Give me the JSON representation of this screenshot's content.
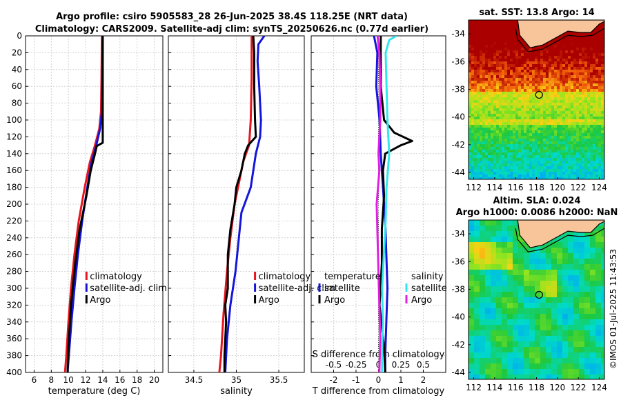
{
  "title_line1": "Argo profile: csiro 5905583_28 26-Jun-2025 38.4S 118.25E (NRT data)",
  "title_line2": "Climatology: CARS2009. Satellite-adj clim: synTS_20250626.nc (0.77d earlier)",
  "map_sst_title": "sat. SST: 13.8 Argo: 14",
  "map_sla_title1": "Altim. SLA: 0.024",
  "map_sla_title2": "Argo h1000: 0.0086 h2000: NaN",
  "side_stamp": "©IMOS 01-Jul-2025 11:43:53",
  "colors": {
    "climatology": "#e8141e",
    "satellite": "#1414dc",
    "argo": "#000000",
    "salinity_satellite": "#33e6ee",
    "salinity_argo": "#e21ee2",
    "land": "#f8c49a"
  },
  "chart_data": [
    {
      "type": "line",
      "name": "temperature",
      "xlabel": "temperature (deg C)",
      "ylabel": "depth",
      "xlim": [
        5,
        21
      ],
      "ylim": [
        400,
        0
      ],
      "xticks": [
        6,
        8,
        10,
        12,
        14,
        16,
        18,
        20
      ],
      "yticks": [
        0,
        20,
        40,
        60,
        80,
        100,
        120,
        140,
        160,
        180,
        200,
        220,
        240,
        260,
        280,
        300,
        320,
        340,
        360,
        380,
        400
      ],
      "legend": [
        "climatology",
        "satellite-adj. clim",
        "Argo"
      ],
      "series": [
        {
          "name": "climatology",
          "color": "climatology",
          "depth": [
            0,
            50,
            90,
            110,
            130,
            150,
            180,
            220,
            260,
            300,
            340,
            380,
            400
          ],
          "values": [
            13.9,
            13.85,
            13.8,
            13.6,
            13.1,
            12.5,
            11.9,
            11.2,
            10.7,
            10.3,
            10.0,
            9.75,
            9.6
          ]
        },
        {
          "name": "satellite-adj. clim",
          "color": "satellite",
          "depth": [
            0,
            50,
            90,
            110,
            130,
            150,
            180,
            220,
            260,
            300,
            340,
            380,
            400
          ],
          "values": [
            14.0,
            13.95,
            13.9,
            13.7,
            13.25,
            12.7,
            12.2,
            11.6,
            11.1,
            10.7,
            10.35,
            10.05,
            9.9
          ]
        },
        {
          "name": "Argo",
          "color": "argo",
          "depth": [
            0,
            40,
            90,
            115,
            127,
            131,
            140,
            160,
            190,
            230,
            270,
            320,
            370,
            400
          ],
          "values": [
            14.0,
            14.0,
            14.0,
            14.0,
            14.0,
            13.3,
            13.1,
            12.6,
            12.1,
            11.3,
            10.8,
            10.3,
            10.0,
            9.9
          ]
        }
      ]
    },
    {
      "type": "line",
      "name": "salinity",
      "xlabel": "salinity",
      "ylabel": "depth",
      "xlim": [
        34.2,
        35.8
      ],
      "ylim": [
        400,
        0
      ],
      "xticks": [
        34.5,
        35,
        35.5
      ],
      "xticklabels": [
        "34.5",
        "35",
        "35.5"
      ],
      "legend": [
        "climatology",
        "satellite-adj. clim",
        "Argo"
      ],
      "series": [
        {
          "name": "climatology",
          "color": "climatology",
          "depth": [
            0,
            50,
            100,
            130,
            150,
            180,
            200,
            240,
            280,
            330,
            380,
            400
          ],
          "values": [
            35.18,
            35.18,
            35.17,
            35.15,
            35.08,
            35.02,
            34.98,
            34.93,
            34.89,
            34.85,
            34.82,
            34.8
          ]
        },
        {
          "name": "satellite-adj. clim",
          "color": "satellite",
          "depth": [
            0,
            10,
            30,
            60,
            100,
            120,
            140,
            180,
            210,
            240,
            280,
            320,
            360,
            400
          ],
          "values": [
            35.33,
            35.26,
            35.25,
            35.27,
            35.29,
            35.28,
            35.23,
            35.17,
            35.06,
            35.03,
            34.99,
            34.93,
            34.89,
            34.87
          ]
        },
        {
          "name": "Argo",
          "color": "argo",
          "depth": [
            0,
            20,
            60,
            100,
            120,
            130,
            140,
            160,
            180,
            200,
            230,
            260,
            300,
            320,
            340,
            380,
            400
          ],
          "values": [
            35.2,
            35.21,
            35.21,
            35.22,
            35.23,
            35.14,
            35.1,
            35.06,
            35.0,
            34.98,
            34.93,
            34.9,
            34.9,
            34.87,
            34.88,
            34.86,
            34.86
          ]
        }
      ]
    },
    {
      "type": "line",
      "name": "difference",
      "xlabel": "T difference from climatology",
      "ylabel": "depth",
      "xlim": [
        -3,
        3
      ],
      "ylim": [
        400,
        0
      ],
      "xticks": [
        -2,
        -1,
        0,
        1,
        2
      ],
      "top_axis_label": "S difference from climatology",
      "top_xticks": [
        -0.5,
        -0.25,
        0,
        0.25,
        0.5
      ],
      "top_xticklabels": [
        "-0.5",
        "-0.25",
        "0",
        "0.25",
        "0.5"
      ],
      "top_xlim": [
        -0.75,
        0.75
      ],
      "legend_left_title": "temperature",
      "legend_right_title": "salinity",
      "legend_left": [
        "satellite",
        "Argo"
      ],
      "legend_right": [
        "satellite",
        "Argo"
      ],
      "series": [
        {
          "name": "T satellite",
          "color": "satellite",
          "scale": "T",
          "depth": [
            0,
            20,
            60,
            100,
            140,
            180,
            220,
            260,
            300,
            340,
            380,
            400
          ],
          "values": [
            -0.2,
            -0.05,
            -0.1,
            0.05,
            0.1,
            0.2,
            0.3,
            0.35,
            0.4,
            0.35,
            0.3,
            0.3
          ]
        },
        {
          "name": "T Argo",
          "color": "argo",
          "scale": "T",
          "depth": [
            0,
            20,
            60,
            100,
            115,
            125,
            130,
            140,
            160,
            190,
            230,
            270,
            320,
            370,
            400
          ],
          "values": [
            0.1,
            0.1,
            0.1,
            0.25,
            0.7,
            1.5,
            1.0,
            0.3,
            0.2,
            0.25,
            0.15,
            0.15,
            0.05,
            0.25,
            0.3
          ]
        },
        {
          "name": "S satellite",
          "color": "salinity_satellite",
          "scale": "S",
          "depth": [
            0,
            5,
            20,
            60,
            100,
            140,
            180,
            220,
            260,
            300,
            340,
            380,
            400
          ],
          "values": [
            0.2,
            0.12,
            0.08,
            0.09,
            0.1,
            0.12,
            0.09,
            0.08,
            0.06,
            0.04,
            0.05,
            0.04,
            0.04
          ]
        },
        {
          "name": "S Argo",
          "color": "salinity_argo",
          "scale": "S",
          "depth": [
            0,
            20,
            60,
            100,
            120,
            140,
            160,
            200,
            240,
            280,
            320,
            360,
            400
          ],
          "values": [
            -0.01,
            0.01,
            0.02,
            0.02,
            0.01,
            0.0,
            0.01,
            -0.02,
            -0.01,
            0.0,
            0.01,
            0.02,
            0.01
          ]
        }
      ]
    },
    {
      "type": "heatmap",
      "name": "sst_map",
      "title": "sat. SST: 13.8 Argo: 14",
      "xlim": [
        111.5,
        124.5
      ],
      "ylim": [
        -44.5,
        -33
      ],
      "xticks": [
        112,
        114,
        116,
        118,
        120,
        122,
        124
      ],
      "yticks": [
        -34,
        -36,
        -38,
        -40,
        -42,
        -44
      ],
      "argo_position": {
        "lon": 118.25,
        "lat": -38.4
      }
    },
    {
      "type": "heatmap",
      "name": "sla_map",
      "title": "Altim. SLA: 0.024",
      "subtitle": "Argo h1000: 0.0086 h2000: NaN",
      "xlim": [
        111.5,
        124.5
      ],
      "ylim": [
        -44.5,
        -33
      ],
      "xticks": [
        112,
        114,
        116,
        118,
        120,
        122,
        124
      ],
      "yticks": [
        -34,
        -36,
        -38,
        -40,
        -42,
        -44
      ],
      "argo_position": {
        "lon": 118.25,
        "lat": -38.4
      }
    }
  ]
}
